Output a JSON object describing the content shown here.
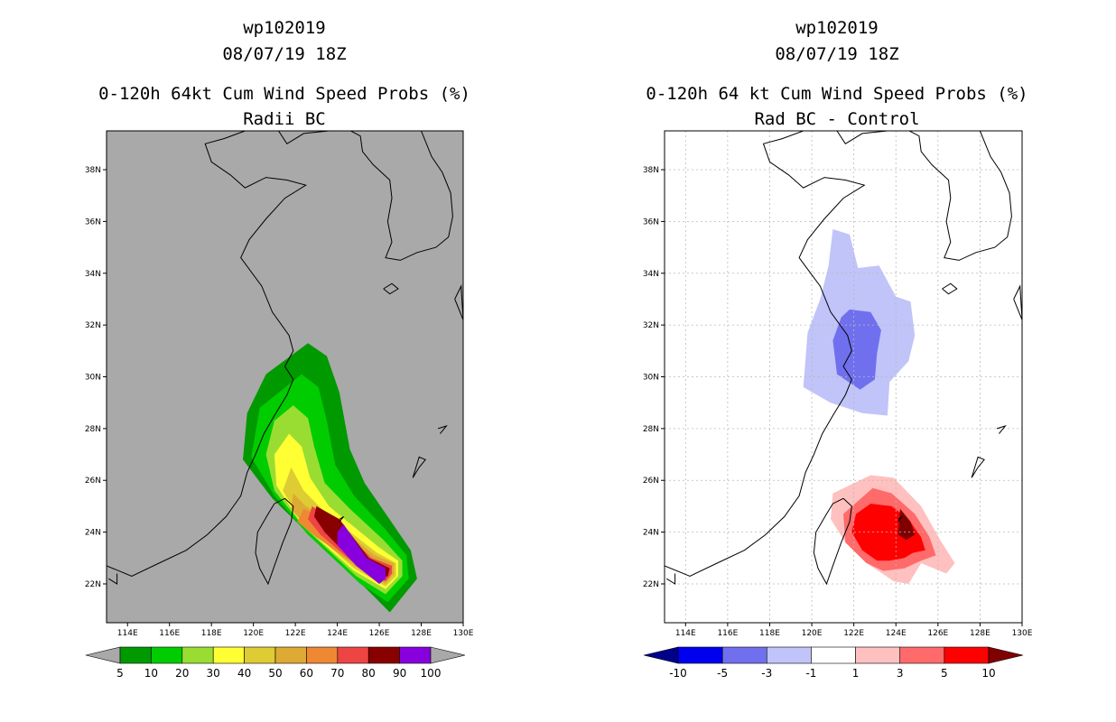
{
  "chart_data": [
    {
      "type": "contour-map",
      "storm_id": "wp102019",
      "datetime": "08/07/19 18Z",
      "title": "0-120h 64kt Cum Wind Speed Probs (%)",
      "subtitle": "Radii BC",
      "background": "#a9a9a9",
      "grid": false,
      "lon_range": [
        113,
        130
      ],
      "lat_range": [
        20.5,
        39.5
      ],
      "lon_ticks": [
        "114E",
        "116E",
        "118E",
        "120E",
        "122E",
        "124E",
        "126E",
        "128E",
        "130E"
      ],
      "lat_ticks": [
        "22N",
        "24N",
        "26N",
        "28N",
        "30N",
        "32N",
        "34N",
        "36N",
        "38N"
      ],
      "colorbar": {
        "labels": [
          "5",
          "10",
          "20",
          "30",
          "40",
          "50",
          "60",
          "70",
          "80",
          "90",
          "100"
        ],
        "colors": [
          "#a9a9a9",
          "#009900",
          "#00cc00",
          "#99dd33",
          "#ffff33",
          "#ddcc33",
          "#ddaa33",
          "#ee8833",
          "#ee4444",
          "#880000",
          "#8800dd",
          "#a9a9a9"
        ]
      },
      "contours": [
        {
          "level": 5,
          "color": "#009900",
          "polygon": [
            [
              122.6,
              31.3
            ],
            [
              123.5,
              30.8
            ],
            [
              124.1,
              29.4
            ],
            [
              124.6,
              27.2
            ],
            [
              125.3,
              25.9
            ],
            [
              126.4,
              24.6
            ],
            [
              127.5,
              23.3
            ],
            [
              127.8,
              22.2
            ],
            [
              126.5,
              20.9
            ],
            [
              125.4,
              21.8
            ],
            [
              122.8,
              23.8
            ],
            [
              120.9,
              25.3
            ],
            [
              119.5,
              26.8
            ],
            [
              119.7,
              28.6
            ],
            [
              120.6,
              30.1
            ]
          ]
        },
        {
          "level": 10,
          "color": "#00cc00",
          "polygon": [
            [
              122.3,
              30.1
            ],
            [
              123.1,
              29.6
            ],
            [
              123.5,
              28.3
            ],
            [
              123.9,
              26.6
            ],
            [
              124.8,
              25.4
            ],
            [
              126.3,
              24.1
            ],
            [
              127.3,
              23.1
            ],
            [
              127.4,
              22.2
            ],
            [
              126.4,
              21.3
            ],
            [
              125.1,
              22.0
            ],
            [
              122.6,
              23.9
            ],
            [
              121.0,
              25.4
            ],
            [
              119.9,
              26.9
            ],
            [
              120.3,
              28.8
            ]
          ]
        },
        {
          "level": 20,
          "color": "#99dd33",
          "polygon": [
            [
              121.9,
              28.9
            ],
            [
              122.6,
              28.4
            ],
            [
              122.9,
              27.3
            ],
            [
              123.4,
              25.9
            ],
            [
              124.6,
              24.9
            ],
            [
              126.2,
              23.7
            ],
            [
              127.1,
              22.9
            ],
            [
              127.1,
              22.3
            ],
            [
              126.3,
              21.6
            ],
            [
              124.9,
              22.3
            ],
            [
              122.4,
              24.2
            ],
            [
              121.0,
              25.6
            ],
            [
              120.6,
              27.0
            ],
            [
              121.0,
              28.3
            ]
          ]
        },
        {
          "level": 30,
          "color": "#ffff33",
          "polygon": [
            [
              121.7,
              27.8
            ],
            [
              122.3,
              27.3
            ],
            [
              122.7,
              26.1
            ],
            [
              123.6,
              25.0
            ],
            [
              126.0,
              23.4
            ],
            [
              126.9,
              22.9
            ],
            [
              126.9,
              22.3
            ],
            [
              126.3,
              21.8
            ],
            [
              124.8,
              22.5
            ],
            [
              122.3,
              24.3
            ],
            [
              121.1,
              25.8
            ],
            [
              121.0,
              27.0
            ]
          ]
        },
        {
          "level": 40,
          "color": "#ddcc33",
          "polygon": [
            [
              121.8,
              26.5
            ],
            [
              122.4,
              25.6
            ],
            [
              123.5,
              24.7
            ],
            [
              125.9,
              23.2
            ],
            [
              126.8,
              22.8
            ],
            [
              126.8,
              22.3
            ],
            [
              126.3,
              21.9
            ],
            [
              124.8,
              22.6
            ],
            [
              122.4,
              24.3
            ],
            [
              121.4,
              25.6
            ]
          ]
        },
        {
          "level": 50,
          "color": "#ddaa33",
          "polygon": [
            [
              121.9,
              25.5
            ],
            [
              122.5,
              25.0
            ],
            [
              123.6,
              24.5
            ],
            [
              125.8,
              23.1
            ],
            [
              126.7,
              22.8
            ],
            [
              126.7,
              22.4
            ],
            [
              126.3,
              22.0
            ],
            [
              124.8,
              22.7
            ],
            [
              122.6,
              24.1
            ],
            [
              121.8,
              24.9
            ]
          ]
        },
        {
          "level": 60,
          "color": "#ee8833",
          "polygon": [
            [
              122.4,
              24.9
            ],
            [
              123.7,
              24.4
            ],
            [
              125.7,
              23.0
            ],
            [
              126.6,
              22.7
            ],
            [
              126.6,
              22.4
            ],
            [
              126.3,
              22.1
            ],
            [
              124.8,
              22.8
            ],
            [
              123.0,
              23.8
            ],
            [
              122.1,
              24.4
            ]
          ]
        },
        {
          "level": 70,
          "color": "#ee4444",
          "polygon": [
            [
              122.8,
              25.0
            ],
            [
              123.9,
              24.4
            ],
            [
              125.6,
              23.0
            ],
            [
              126.6,
              22.7
            ],
            [
              126.6,
              22.4
            ],
            [
              126.3,
              22.1
            ],
            [
              124.8,
              22.8
            ],
            [
              123.2,
              23.9
            ],
            [
              122.6,
              24.5
            ]
          ]
        },
        {
          "level": 80,
          "color": "#880000",
          "polygon": [
            [
              123.0,
              25.0
            ],
            [
              124.1,
              24.5
            ],
            [
              125.5,
              23.0
            ],
            [
              126.5,
              22.6
            ],
            [
              126.4,
              22.3
            ],
            [
              126.1,
              22.2
            ],
            [
              124.6,
              23.0
            ],
            [
              123.4,
              24.0
            ],
            [
              122.9,
              24.6
            ]
          ]
        },
        {
          "level": 90,
          "color": "#8800dd",
          "polygon": [
            [
              124.3,
              24.3
            ],
            [
              125.4,
              23.0
            ],
            [
              126.3,
              22.6
            ],
            [
              126.3,
              22.2
            ],
            [
              126.0,
              22.0
            ],
            [
              124.9,
              22.7
            ],
            [
              124.0,
              23.5
            ],
            [
              124.0,
              24.0
            ]
          ]
        }
      ]
    },
    {
      "type": "contour-map",
      "storm_id": "wp102019",
      "datetime": "08/07/19 18Z",
      "title": "0-120h 64 kt Cum Wind Speed Probs (%)",
      "subtitle": "Rad BC - Control",
      "background": "#ffffff",
      "grid": true,
      "lon_range": [
        113,
        130
      ],
      "lat_range": [
        20.5,
        39.5
      ],
      "lon_ticks": [
        "114E",
        "116E",
        "118E",
        "120E",
        "122E",
        "124E",
        "126E",
        "128E",
        "130E"
      ],
      "lat_ticks": [
        "22N",
        "24N",
        "26N",
        "28N",
        "30N",
        "32N",
        "34N",
        "36N",
        "38N"
      ],
      "colorbar": {
        "labels": [
          "-10",
          "-5",
          "-3",
          "-1",
          "1",
          "3",
          "5",
          "10"
        ],
        "colors": [
          "#00008b",
          "#0000ee",
          "#7070ee",
          "#c0c4f8",
          "#ffffff",
          "#ffc0c0",
          "#ff6a6a",
          "#ff0000",
          "#800000"
        ]
      },
      "contours": [
        {
          "level": -1,
          "color": "#c0c4f8",
          "polygon": [
            [
              121.0,
              35.7
            ],
            [
              121.8,
              35.5
            ],
            [
              122.2,
              34.2
            ],
            [
              123.2,
              34.3
            ],
            [
              124.0,
              33.1
            ],
            [
              124.7,
              32.9
            ],
            [
              124.9,
              31.6
            ],
            [
              124.6,
              30.6
            ],
            [
              123.7,
              29.8
            ],
            [
              123.6,
              28.5
            ],
            [
              122.4,
              28.6
            ],
            [
              120.9,
              29.0
            ],
            [
              119.6,
              29.6
            ],
            [
              119.8,
              31.7
            ],
            [
              120.4,
              33.0
            ],
            [
              120.8,
              34.3
            ]
          ]
        },
        {
          "level": -3,
          "color": "#7070ee",
          "polygon": [
            [
              121.8,
              32.6
            ],
            [
              122.8,
              32.5
            ],
            [
              123.3,
              31.8
            ],
            [
              123.1,
              30.9
            ],
            [
              123.0,
              29.9
            ],
            [
              122.3,
              29.5
            ],
            [
              121.2,
              30.1
            ],
            [
              121.0,
              31.4
            ],
            [
              121.4,
              32.3
            ]
          ]
        },
        {
          "level": 1,
          "color": "#ffc0c0",
          "polygon": [
            [
              122.8,
              26.2
            ],
            [
              123.9,
              26.1
            ],
            [
              125.2,
              25.0
            ],
            [
              126.1,
              23.7
            ],
            [
              126.8,
              22.8
            ],
            [
              126.4,
              22.4
            ],
            [
              125.2,
              22.8
            ],
            [
              124.6,
              22.0
            ],
            [
              123.9,
              22.1
            ],
            [
              122.8,
              22.7
            ],
            [
              121.6,
              23.6
            ],
            [
              120.9,
              24.5
            ],
            [
              121.0,
              25.5
            ]
          ]
        },
        {
          "level": 3,
          "color": "#ff6a6a",
          "polygon": [
            [
              122.9,
              25.7
            ],
            [
              123.8,
              25.5
            ],
            [
              124.9,
              24.7
            ],
            [
              125.6,
              23.8
            ],
            [
              125.9,
              23.1
            ],
            [
              125.2,
              22.9
            ],
            [
              124.4,
              22.6
            ],
            [
              123.4,
              22.5
            ],
            [
              122.6,
              22.8
            ],
            [
              121.6,
              23.6
            ],
            [
              121.5,
              24.7
            ]
          ]
        },
        {
          "level": 5,
          "color": "#ff0000",
          "polygon": [
            [
              122.8,
              25.1
            ],
            [
              123.8,
              25.0
            ],
            [
              124.6,
              24.5
            ],
            [
              125.2,
              23.8
            ],
            [
              125.4,
              23.3
            ],
            [
              124.8,
              23.2
            ],
            [
              124.4,
              23.0
            ],
            [
              123.7,
              22.9
            ],
            [
              123.1,
              22.9
            ],
            [
              122.4,
              23.3
            ],
            [
              121.9,
              24.0
            ],
            [
              122.1,
              24.7
            ]
          ]
        },
        {
          "level": 10,
          "color": "#800000",
          "polygon": [
            [
              124.2,
              24.9
            ],
            [
              124.7,
              24.4
            ],
            [
              124.9,
              23.9
            ],
            [
              124.5,
              23.7
            ],
            [
              124.1,
              23.9
            ]
          ]
        }
      ]
    }
  ]
}
